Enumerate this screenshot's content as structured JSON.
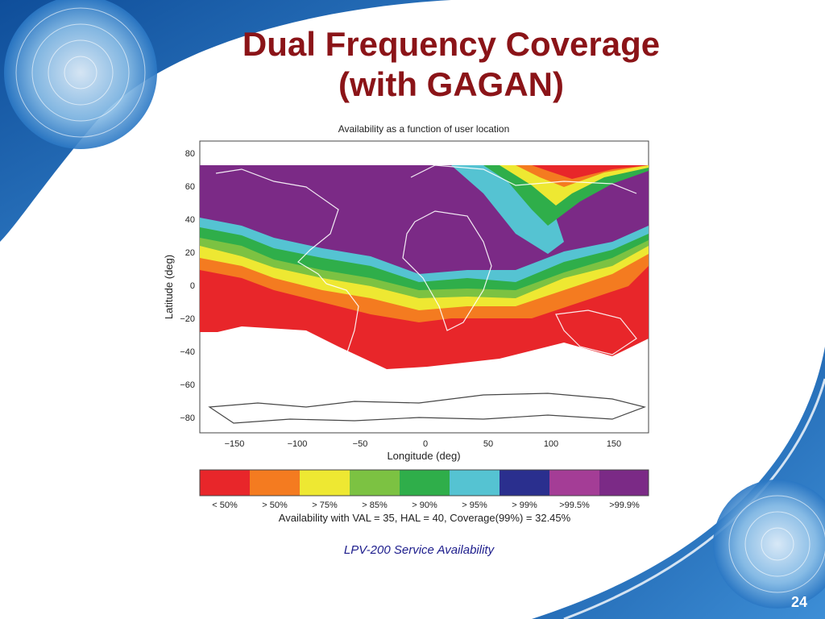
{
  "slide": {
    "title_line1": "Dual Frequency Coverage",
    "title_line2": "(with GAGAN)",
    "caption": "LPV-200 Service Availability",
    "page_number": "24"
  },
  "map": {
    "title": "Availability as a function of user location",
    "xlabel": "Longitude (deg)",
    "ylabel": "Latitude (deg)",
    "xlim": [
      -180,
      180
    ],
    "ylim": [
      -90,
      90
    ],
    "xticks": [
      "−150",
      "−100",
      "−50",
      "0",
      "50",
      "100",
      "150"
    ],
    "yticks": [
      "80",
      "60",
      "40",
      "20",
      "0",
      "−20",
      "−40",
      "−60",
      "−80"
    ],
    "legend_labels": [
      "<  50%",
      ">  50%",
      ">  75%",
      ">  85%",
      ">  90%",
      ">  95%",
      ">  99%",
      ">99.5%",
      ">99.9%"
    ],
    "legend_colors": [
      "#e8262a",
      "#f47b20",
      "#eee832",
      "#7cc242",
      "#2fae4a",
      "#55c3d2",
      "#2a2f8e",
      "#a43d96",
      "#7b2a86"
    ],
    "footnote": "Availability with VAL = 35,  HAL = 40, Coverage(99%) = 32.45%"
  },
  "colors": {
    "title": "#8b1418",
    "caption": "#1d1d8c",
    "swoosh": "#1a64b4"
  }
}
